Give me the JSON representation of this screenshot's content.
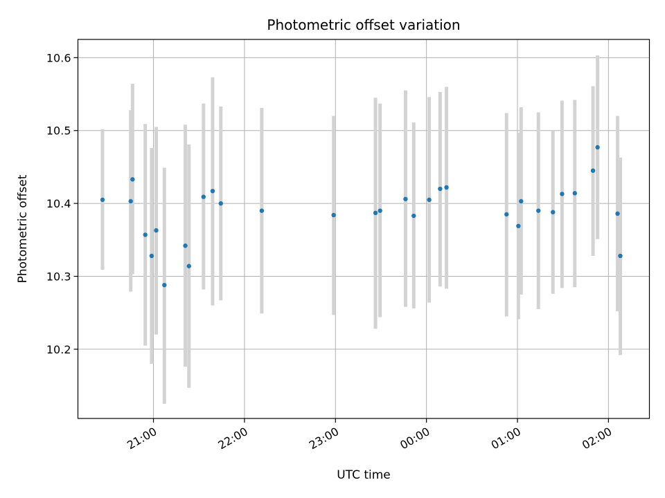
{
  "chart_data": {
    "type": "scatter",
    "title": "Photometric offset variation",
    "xlabel": "UTC time",
    "ylabel": "Photometric offset",
    "x_unit": "UTC time (hours; values past 24 are the next day)",
    "xlim": [
      20.17,
      26.45
    ],
    "ylim": [
      10.105,
      10.625
    ],
    "grid": true,
    "x_ticks": [
      {
        "value": 21,
        "label": "21:00"
      },
      {
        "value": 22,
        "label": "22:00"
      },
      {
        "value": 23,
        "label": "23:00"
      },
      {
        "value": 24,
        "label": "00:00"
      },
      {
        "value": 25,
        "label": "01:00"
      },
      {
        "value": 26,
        "label": "02:00"
      }
    ],
    "y_ticks": [
      {
        "value": 10.2,
        "label": "10.2"
      },
      {
        "value": 10.3,
        "label": "10.3"
      },
      {
        "value": 10.4,
        "label": "10.4"
      },
      {
        "value": 10.5,
        "label": "10.5"
      },
      {
        "value": 10.6,
        "label": "10.6"
      }
    ],
    "series": [
      {
        "marker_color": "#1f77b4",
        "errorbar_color": "#d3d3d3",
        "points": [
          {
            "x": 20.44,
            "y": 10.405,
            "ylow": 10.309,
            "yhigh": 10.502
          },
          {
            "x": 20.75,
            "y": 10.403,
            "ylow": 10.279,
            "yhigh": 10.528
          },
          {
            "x": 20.77,
            "y": 10.433,
            "ylow": 10.303,
            "yhigh": 10.564
          },
          {
            "x": 20.91,
            "y": 10.357,
            "ylow": 10.205,
            "yhigh": 10.509
          },
          {
            "x": 20.98,
            "y": 10.328,
            "ylow": 10.18,
            "yhigh": 10.476
          },
          {
            "x": 21.03,
            "y": 10.363,
            "ylow": 10.22,
            "yhigh": 10.505
          },
          {
            "x": 21.12,
            "y": 10.288,
            "ylow": 10.125,
            "yhigh": 10.449
          },
          {
            "x": 21.35,
            "y": 10.342,
            "ylow": 10.176,
            "yhigh": 10.508
          },
          {
            "x": 21.39,
            "y": 10.314,
            "ylow": 10.147,
            "yhigh": 10.481
          },
          {
            "x": 21.55,
            "y": 10.409,
            "ylow": 10.282,
            "yhigh": 10.537
          },
          {
            "x": 21.65,
            "y": 10.417,
            "ylow": 10.26,
            "yhigh": 10.573
          },
          {
            "x": 21.74,
            "y": 10.4,
            "ylow": 10.267,
            "yhigh": 10.533
          },
          {
            "x": 22.19,
            "y": 10.39,
            "ylow": 10.249,
            "yhigh": 10.531
          },
          {
            "x": 22.98,
            "y": 10.384,
            "ylow": 10.247,
            "yhigh": 10.52
          },
          {
            "x": 23.44,
            "y": 10.387,
            "ylow": 10.228,
            "yhigh": 10.545
          },
          {
            "x": 23.49,
            "y": 10.39,
            "ylow": 10.244,
            "yhigh": 10.537
          },
          {
            "x": 23.77,
            "y": 10.406,
            "ylow": 10.258,
            "yhigh": 10.555
          },
          {
            "x": 23.86,
            "y": 10.383,
            "ylow": 10.256,
            "yhigh": 10.511
          },
          {
            "x": 24.03,
            "y": 10.405,
            "ylow": 10.264,
            "yhigh": 10.546
          },
          {
            "x": 24.15,
            "y": 10.42,
            "ylow": 10.286,
            "yhigh": 10.553
          },
          {
            "x": 24.22,
            "y": 10.422,
            "ylow": 10.283,
            "yhigh": 10.56
          },
          {
            "x": 24.88,
            "y": 10.385,
            "ylow": 10.245,
            "yhigh": 10.524
          },
          {
            "x": 25.01,
            "y": 10.369,
            "ylow": 10.241,
            "yhigh": 10.497
          },
          {
            "x": 25.04,
            "y": 10.403,
            "ylow": 10.275,
            "yhigh": 10.532
          },
          {
            "x": 25.23,
            "y": 10.39,
            "ylow": 10.255,
            "yhigh": 10.525
          },
          {
            "x": 25.39,
            "y": 10.388,
            "ylow": 10.276,
            "yhigh": 10.5
          },
          {
            "x": 25.49,
            "y": 10.413,
            "ylow": 10.284,
            "yhigh": 10.541
          },
          {
            "x": 25.63,
            "y": 10.414,
            "ylow": 10.285,
            "yhigh": 10.542
          },
          {
            "x": 25.83,
            "y": 10.445,
            "ylow": 10.328,
            "yhigh": 10.561
          },
          {
            "x": 25.88,
            "y": 10.477,
            "ylow": 10.351,
            "yhigh": 10.603
          },
          {
            "x": 26.1,
            "y": 10.386,
            "ylow": 10.252,
            "yhigh": 10.52
          },
          {
            "x": 26.13,
            "y": 10.328,
            "ylow": 10.192,
            "yhigh": 10.463
          }
        ]
      }
    ]
  }
}
